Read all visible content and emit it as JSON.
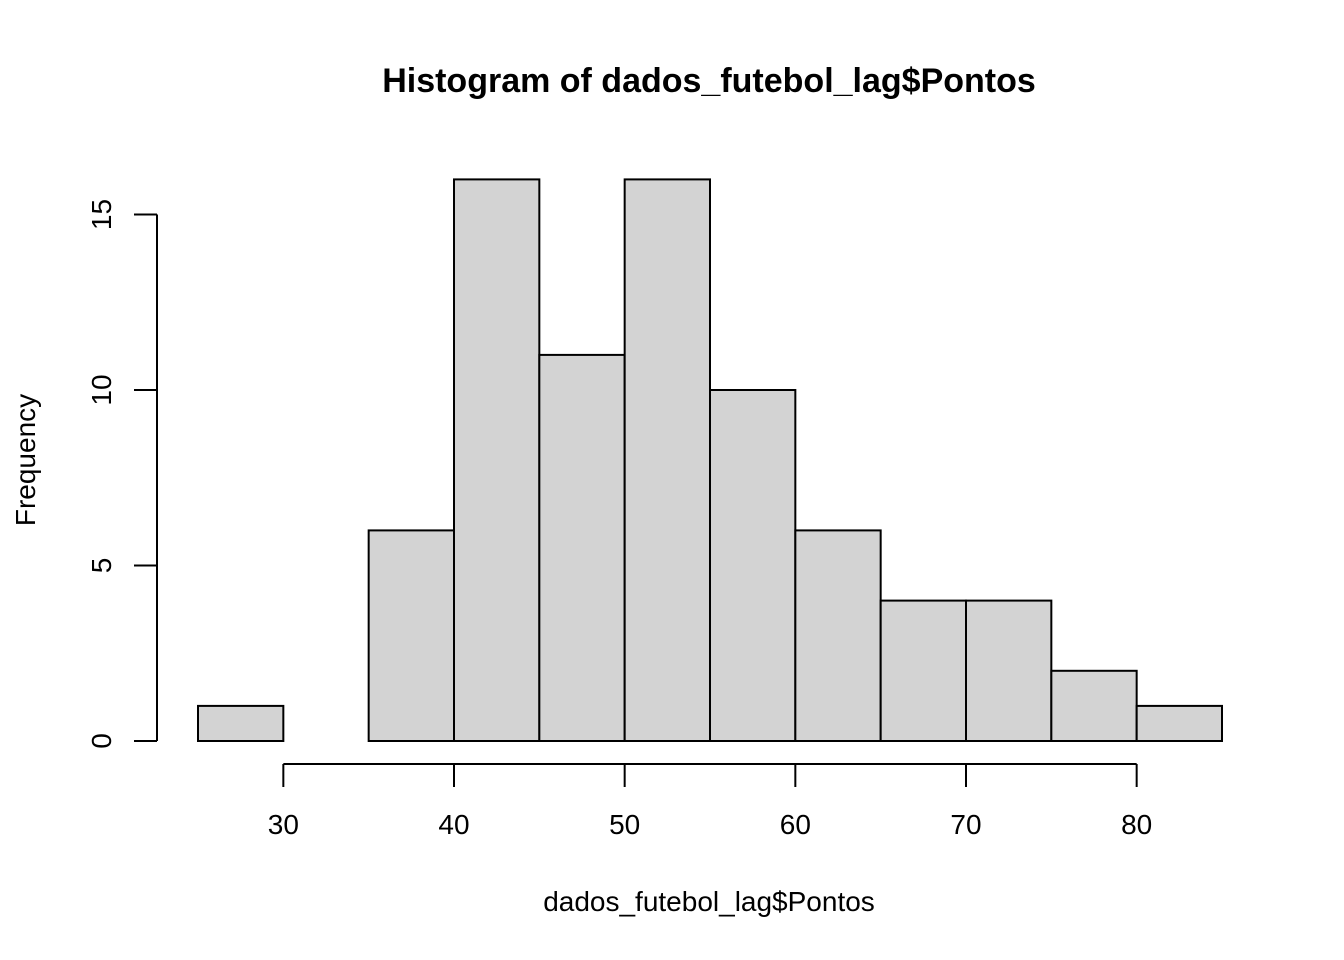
{
  "chart_data": {
    "type": "bar",
    "title": "Histogram of dados_futebol_lag$Pontos",
    "xlabel": "dados_futebol_lag$Pontos",
    "ylabel": "Frequency",
    "bins": [
      {
        "start": 25,
        "end": 30,
        "count": 1
      },
      {
        "start": 30,
        "end": 35,
        "count": 0
      },
      {
        "start": 35,
        "end": 40,
        "count": 6
      },
      {
        "start": 40,
        "end": 45,
        "count": 16
      },
      {
        "start": 45,
        "end": 50,
        "count": 11
      },
      {
        "start": 50,
        "end": 55,
        "count": 16
      },
      {
        "start": 55,
        "end": 60,
        "count": 10
      },
      {
        "start": 60,
        "end": 65,
        "count": 6
      },
      {
        "start": 65,
        "end": 70,
        "count": 4
      },
      {
        "start": 70,
        "end": 75,
        "count": 4
      },
      {
        "start": 75,
        "end": 80,
        "count": 2
      },
      {
        "start": 80,
        "end": 85,
        "count": 1
      }
    ],
    "xlim": [
      25,
      85
    ],
    "ylim": [
      0,
      16
    ],
    "x_ticks": [
      30,
      40,
      50,
      60,
      70,
      80
    ],
    "y_ticks": [
      0,
      5,
      10,
      15
    ],
    "bar_color": "#d3d3d3",
    "grid": false
  }
}
